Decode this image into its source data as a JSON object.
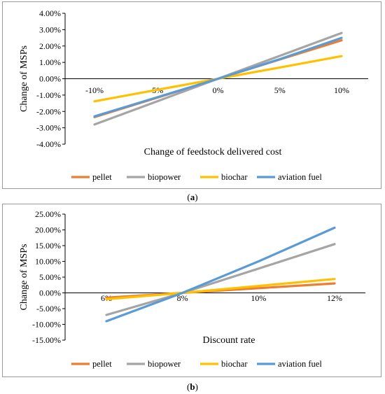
{
  "chart_data": [
    {
      "type": "line",
      "panel": "a",
      "caption": "a",
      "xlabel": "Change of feedstock delivered cost",
      "ylabel": "Change of MSPs",
      "categories": [
        "-10%",
        "-5%",
        "0%",
        "5%",
        "10%"
      ],
      "x": [
        -10,
        -5,
        0,
        5,
        10
      ],
      "ylim": [
        -4,
        4
      ],
      "yticks": [
        -4,
        -3,
        -2,
        -1,
        0,
        1,
        2,
        3,
        4
      ],
      "ytick_labels": [
        "-4.00%",
        "-3.00%",
        "-2.00%",
        "-1.00%",
        "0.00%",
        "1.00%",
        "2.00%",
        "3.00%",
        "4.00%"
      ],
      "grid": false,
      "legend_position": "bottom",
      "series": [
        {
          "name": "pellet",
          "color": "#ED7D31",
          "values": [
            -2.35,
            -1.175,
            0,
            1.175,
            2.35
          ]
        },
        {
          "name": "biopower",
          "color": "#A5A5A5",
          "values": [
            -2.8,
            -1.4,
            0,
            1.4,
            2.8
          ]
        },
        {
          "name": "biochar",
          "color": "#FFC000",
          "values": [
            -1.38,
            -0.69,
            0,
            0.69,
            1.38
          ]
        },
        {
          "name": "aviation fuel",
          "color": "#5B9BD5",
          "values": [
            -2.3,
            -1.15,
            0,
            1.2,
            2.5
          ]
        }
      ]
    },
    {
      "type": "line",
      "panel": "b",
      "caption": "b",
      "xlabel": "Discount rate",
      "ylabel": "Change of MSPs",
      "categories": [
        "6%",
        "8%",
        "10%",
        "12%"
      ],
      "x": [
        6,
        8,
        10,
        12
      ],
      "ylim": [
        -15,
        25
      ],
      "yticks": [
        -15,
        -10,
        -5,
        0,
        5,
        10,
        15,
        20,
        25
      ],
      "ytick_labels": [
        "-15.00%",
        "-10.00%",
        "-5.00%",
        "0.00%",
        "5.00%",
        "10.00%",
        "15.00%",
        "20.00%",
        "25.00%"
      ],
      "grid": false,
      "legend_position": "bottom",
      "series": [
        {
          "name": "pellet",
          "color": "#ED7D31",
          "values": [
            -1.5,
            0,
            1.5,
            3.0
          ]
        },
        {
          "name": "biopower",
          "color": "#A5A5A5",
          "values": [
            -7.0,
            0,
            7.7,
            15.5
          ]
        },
        {
          "name": "biochar",
          "color": "#FFC000",
          "values": [
            -2.0,
            0,
            2.2,
            4.4
          ]
        },
        {
          "name": "aviation fuel",
          "color": "#5B9BD5",
          "values": [
            -9.0,
            0,
            10.0,
            20.7
          ]
        }
      ]
    }
  ]
}
